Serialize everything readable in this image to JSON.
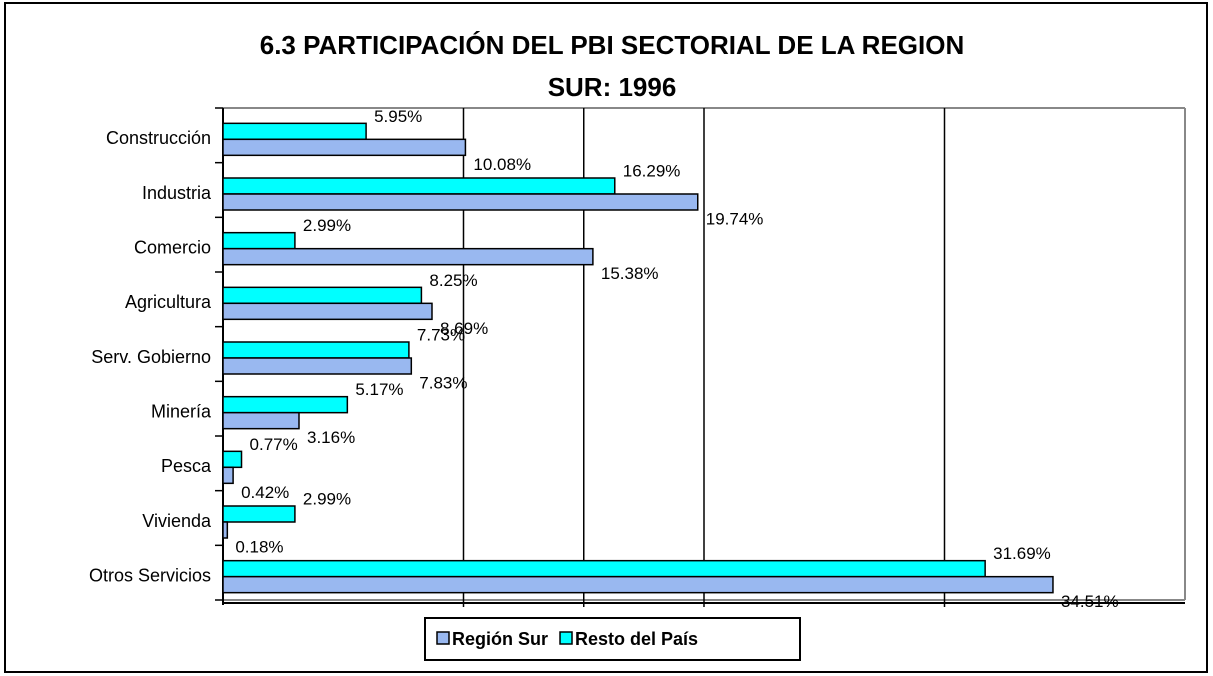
{
  "chart_data": {
    "type": "hbar",
    "title": "6.3 PARTICIPACIÓN DEL PBI SECTORIAL DE LA REGION",
    "subtitle": "SUR: 1996",
    "categories": [
      "Construcción",
      "Industria",
      "Comercio",
      "Agricultura",
      "Serv. Gobierno",
      "Minería",
      "Pesca",
      "Vivienda",
      "Otros Servicios"
    ],
    "series": [
      {
        "name": "Región Sur",
        "color": "#99b8f0",
        "values": [
          10.08,
          19.74,
          15.38,
          8.69,
          7.83,
          3.16,
          0.42,
          0.18,
          34.51
        ],
        "value_labels": [
          "10.08%",
          "19.74%",
          "15.38%",
          "8.69%",
          "7.83%",
          "3.16%",
          "0.42%",
          "0.18%",
          "34.51%"
        ]
      },
      {
        "name": "Resto del País",
        "color": "#00ffff",
        "values": [
          5.95,
          16.29,
          2.99,
          8.25,
          7.73,
          5.17,
          0.77,
          2.99,
          31.69
        ],
        "value_labels": [
          "5.95%",
          "16.29%",
          "2.99%",
          "8.25%",
          "7.73%",
          "5.17%",
          "0.77%",
          "2.99%",
          "31.69%"
        ]
      }
    ],
    "xlim": [
      0,
      40
    ],
    "xticks": [
      10,
      15,
      20,
      30
    ],
    "grid": true,
    "legend": "bottom"
  }
}
